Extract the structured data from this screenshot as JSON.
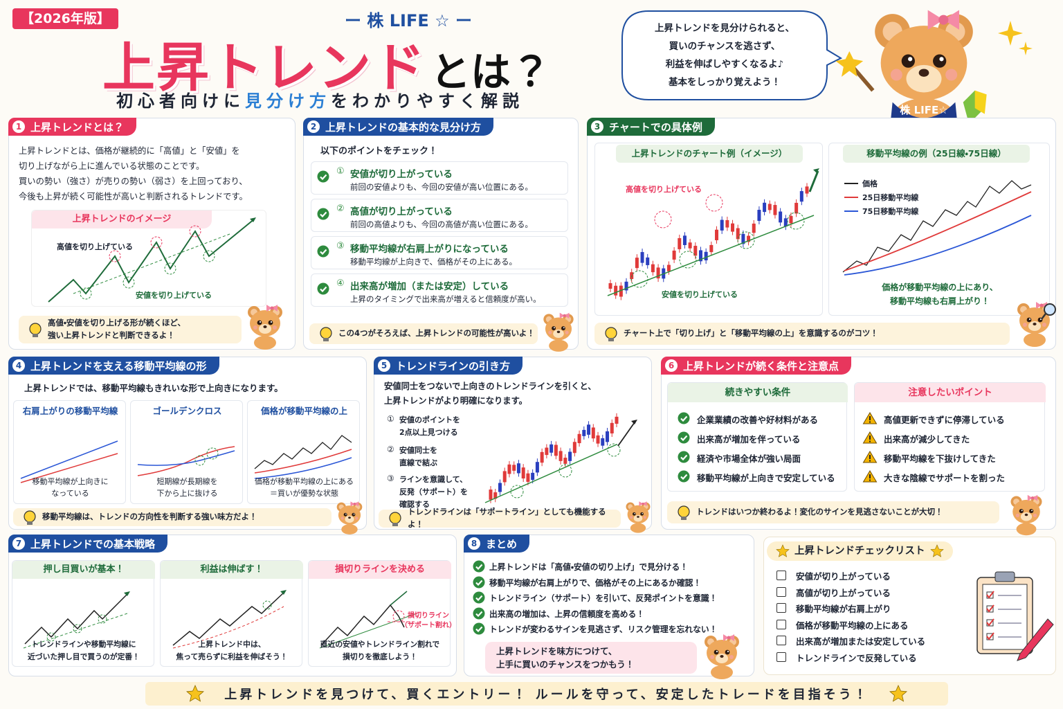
{
  "header": {
    "badge": "【2026年版】",
    "brand": "ー 株 LIFE ☆ ー",
    "title_main": "上昇トレンド",
    "title_rest": "とは？",
    "subtitle": [
      "初心者向けに",
      "見分け方",
      "をわかりやすく解説"
    ]
  },
  "mascot": {
    "speech": [
      "上昇トレンドを見分けられると、",
      "買いのチャンスを逃さず、",
      "利益を伸ばしやすくなるよ♪",
      "基本をしっかり覚えよう！"
    ],
    "shirt": "株 LIFE☆"
  },
  "section1": {
    "num": "1",
    "title": "上昇トレンドとは？",
    "body": [
      "上昇トレンドとは、価格が継続的に「高値」と「安値」を",
      "切り上げながら上に進んでいる状態のことです。",
      "買いの勢い（強さ）が売りの勢い（弱さ）を上回っており、",
      "今後も上昇が続く可能性が高いと判断されるトレンドです。"
    ],
    "image_title": "上昇トレンドのイメージ",
    "label_high": "高値を切り上げている",
    "label_low": "安値を切り上げている",
    "tip": [
      "高値・安値を切り上げる形が続くほど、",
      "強い上昇トレンドと判断できるよ！"
    ]
  },
  "section2": {
    "num": "2",
    "title": "上昇トレンドの基本的な見分け方",
    "intro": "以下のポイントをチェック！",
    "points": [
      {
        "num": "①",
        "title": "安値が切り上がっている",
        "desc": "前回の安値よりも、今回の安値が高い位置にある。"
      },
      {
        "num": "②",
        "title": "高値が切り上がっている",
        "desc": "前回の高値よりも、今回の高値が高い位置にある。"
      },
      {
        "num": "③",
        "title": "移動平均線が右肩上がりになっている",
        "desc": "移動平均線が上向きで、価格がその上にある。"
      },
      {
        "num": "④",
        "title": "出来高が増加（または安定）している",
        "desc": "上昇のタイミングで出来高が増えると信頼度が高い。"
      }
    ],
    "tip": "この4つがそろえば、上昇トレンドの可能性が高いよ！"
  },
  "section3": {
    "num": "3",
    "title": "チャートでの具体例",
    "panel1": {
      "title": "上昇トレンドのチャート例（イメージ）",
      "label_high": "高値を切り上げている",
      "label_low": "安値を切り上げている"
    },
    "panel2": {
      "title": "移動平均線の例（25日線・75日線）",
      "legend": [
        "価格",
        "25日移動平均線",
        "75日移動平均線"
      ],
      "caption": [
        "価格が移動平均線の上にあり、",
        "移動平均線も右肩上がり！"
      ]
    },
    "tip": "チャート上で「切り上げ」と「移動平均線の上」を意識するのがコツ！"
  },
  "section4": {
    "num": "4",
    "title": "上昇トレンドを支える移動平均線の形",
    "intro": "上昇トレンドでは、移動平均線もきれいな形で上向きになります。",
    "cards": [
      {
        "title": "右肩上がりの移動平均線",
        "caption": [
          "移動平均線が上向きに",
          "なっている"
        ]
      },
      {
        "title": "ゴールデンクロス",
        "caption": [
          "短期線が長期線を",
          "下から上に抜ける"
        ]
      },
      {
        "title": "価格が移動平均線の上",
        "caption": [
          "価格が移動平均線の上にある",
          "＝買いが優勢な状態"
        ]
      }
    ],
    "tip": "移動平均線は、トレンドの方向性を判断する強い味方だよ！"
  },
  "section5": {
    "num": "5",
    "title": "トレンドラインの引き方",
    "intro": [
      "安値同士をつないで上向きのトレンドラインを引くと、",
      "上昇トレンドがより明確になります。"
    ],
    "steps": [
      {
        "num": "①",
        "text": [
          "安値のポイントを",
          "2点以上見つける"
        ]
      },
      {
        "num": "②",
        "text": [
          "安値同士を",
          "直線で結ぶ"
        ]
      },
      {
        "num": "③",
        "text": [
          "ラインを意識して、",
          "反発（サポート）を",
          "確認する"
        ]
      }
    ],
    "tip": "トレンドラインは「サポートライン」としても機能するよ！"
  },
  "section6": {
    "num": "6",
    "title": "上昇トレンドが続く条件と注意点",
    "good": {
      "title": "続きやすい条件",
      "items": [
        "企業業績の改善や好材料がある",
        "出来高が増加を伴っている",
        "経済や市場全体が強い局面",
        "移動平均線が上向きで安定している"
      ]
    },
    "caution": {
      "title": "注意したいポイント",
      "items": [
        "高値更新できずに停滞している",
        "出来高が減少してきた",
        "移動平均線を下抜けしてきた",
        "大きな陰線でサポートを割った"
      ]
    },
    "tip": "トレンドはいつか終わるよ！変化のサインを見逃さないことが大切！"
  },
  "section7": {
    "num": "7",
    "title": "上昇トレンドでの基本戦略",
    "cards": [
      {
        "title": "押し目買いが基本！",
        "caption": [
          "トレンドラインや移動平均線に",
          "近づいた押し目で買うのが定番！"
        ]
      },
      {
        "title": "利益は伸ばす！",
        "caption": [
          "上昇トレンド中は、",
          "焦って売らずに利益を伸ばそう！"
        ]
      },
      {
        "title": "損切りラインを決める",
        "caption": [
          "直近の安値やトレンドライン割れで",
          "損切りを徹底しよう！"
        ]
      }
    ],
    "stop_label": [
      "損切りライン",
      "（サポート割れ）"
    ]
  },
  "section8": {
    "num": "8",
    "title": "まとめ",
    "items": [
      "上昇トレンドは「高値・安値の切り上げ」で見分ける！",
      "移動平均線が右肩上がりで、価格がその上にあるか確認！",
      "トレンドライン（サポート）を引いて、反発ポイントを意識！",
      "出来高の増加は、上昇の信頼度を高める！",
      "トレンドが変わるサインを見逃さず、リスク管理を忘れない！"
    ],
    "bubble": [
      "上昇トレンドを味方につけて、",
      "上手に買いのチャンスをつかもう！"
    ]
  },
  "checklist": {
    "title": "上昇トレンドチェックリスト",
    "items": [
      "安値が切り上がっている",
      "高値が切り上がっている",
      "移動平均線が右肩上がり",
      "価格が移動平均線の上にある",
      "出来高が増加または安定している",
      "トレンドラインで反発している"
    ]
  },
  "footer": "上昇トレンドを見つけて、買くエントリー！ ルールを守って、安定したトレードを目指そう！"
}
